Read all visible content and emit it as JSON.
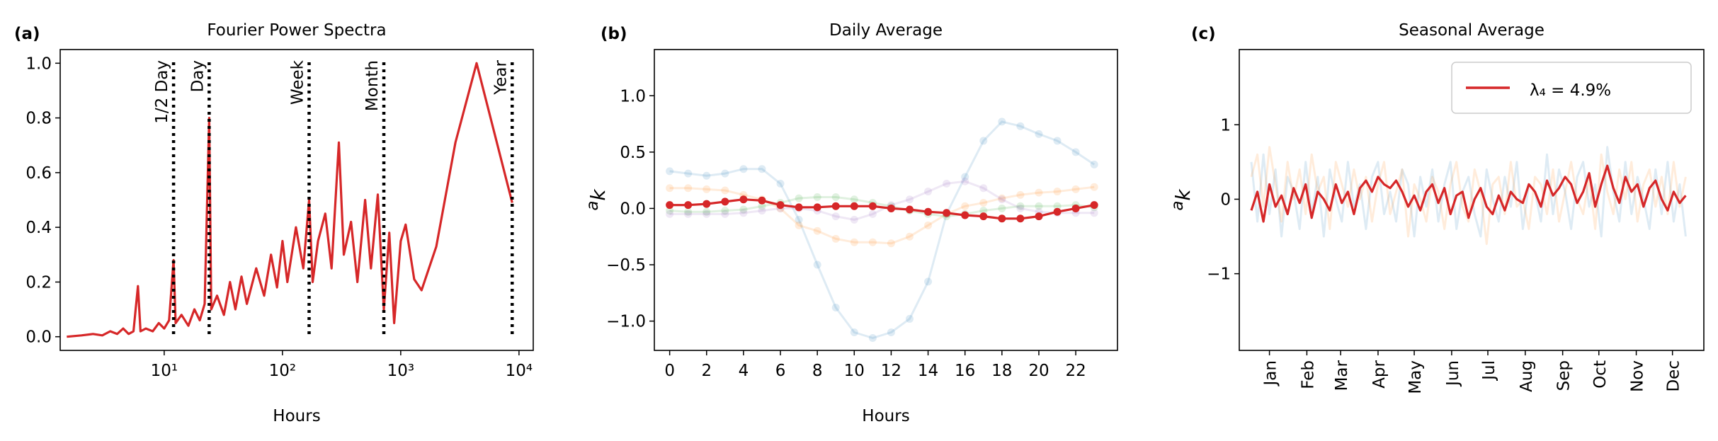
{
  "chart_data": [
    {
      "type": "line",
      "label": "(a)",
      "title": "Fourier Power Spectra",
      "xlabel": "Hours",
      "xscale": "log",
      "xlim": [
        1.32,
        13200
      ],
      "ylim": [
        -0.05,
        1.05
      ],
      "xticks": [
        {
          "value": 10,
          "label": "10¹"
        },
        {
          "value": 100,
          "label": "10²"
        },
        {
          "value": 1000,
          "label": "10³"
        },
        {
          "value": 10000,
          "label": "10⁴"
        }
      ],
      "yticks": [
        {
          "value": 0,
          "label": "0.0"
        },
        {
          "value": 0.2,
          "label": "0.2"
        },
        {
          "value": 0.4,
          "label": "0.4"
        },
        {
          "value": 0.6,
          "label": "0.6"
        },
        {
          "value": 0.8,
          "label": "0.8"
        },
        {
          "value": 1,
          "label": "1.0"
        }
      ],
      "vlines": [
        {
          "value": 12,
          "label": "1/2 Day"
        },
        {
          "value": 24,
          "label": "Day"
        },
        {
          "value": 168,
          "label": "Week"
        },
        {
          "value": 720,
          "label": "Month"
        },
        {
          "value": 8760,
          "label": "Year"
        }
      ],
      "x": [
        1.5,
        2,
        2.5,
        3,
        3.5,
        4,
        4.5,
        5,
        5.5,
        6,
        6.3,
        7,
        8,
        9,
        10,
        11,
        12,
        12.5,
        14,
        16,
        18,
        20,
        22,
        24,
        25,
        28,
        32,
        36,
        40,
        45,
        50,
        60,
        70,
        80,
        90,
        100,
        110,
        130,
        150,
        168,
        180,
        200,
        230,
        260,
        300,
        330,
        380,
        430,
        500,
        560,
        640,
        720,
        800,
        880,
        1000,
        1100,
        1300,
        1500,
        2000,
        2900,
        4380,
        8760
      ],
      "series": [
        {
          "color": "#d62728",
          "opacity": 1,
          "values": [
            0.0,
            0.005,
            0.01,
            0.005,
            0.02,
            0.01,
            0.03,
            0.01,
            0.02,
            0.185,
            0.02,
            0.03,
            0.02,
            0.05,
            0.03,
            0.06,
            0.28,
            0.05,
            0.08,
            0.04,
            0.1,
            0.06,
            0.12,
            0.8,
            0.1,
            0.15,
            0.08,
            0.2,
            0.1,
            0.22,
            0.12,
            0.25,
            0.15,
            0.3,
            0.18,
            0.35,
            0.2,
            0.4,
            0.25,
            0.5,
            0.2,
            0.35,
            0.45,
            0.25,
            0.71,
            0.3,
            0.42,
            0.2,
            0.5,
            0.25,
            0.52,
            0.1,
            0.38,
            0.05,
            0.35,
            0.41,
            0.21,
            0.17,
            0.33,
            0.71,
            1.0,
            0.49
          ]
        }
      ]
    },
    {
      "type": "line",
      "label": "(b)",
      "title": "Daily Average",
      "xlabel": "Hours",
      "ylabel_base": "a",
      "ylabel_sub": "k",
      "markers": true,
      "xlim": [
        -0.83,
        24.26
      ],
      "ylim": [
        -1.26,
        1.41
      ],
      "xticks": [
        0,
        2,
        4,
        6,
        8,
        10,
        12,
        14,
        16,
        18,
        20,
        22
      ],
      "yticks": [
        {
          "value": -1,
          "label": "−1.0"
        },
        {
          "value": -0.5,
          "label": "−0.5"
        },
        {
          "value": 0,
          "label": "0.0"
        },
        {
          "value": 0.5,
          "label": "0.5"
        },
        {
          "value": 1,
          "label": "1.0"
        }
      ],
      "x": [
        0,
        1,
        2,
        3,
        4,
        5,
        6,
        7,
        8,
        9,
        10,
        11,
        12,
        13,
        14,
        15,
        16,
        17,
        18,
        19,
        20,
        21,
        22,
        23
      ],
      "series": [
        {
          "color": "#1f77b4",
          "opacity": 0.15,
          "values": [
            0.33,
            0.31,
            0.29,
            0.31,
            0.35,
            0.35,
            0.22,
            -0.1,
            -0.5,
            -0.88,
            -1.1,
            -1.15,
            -1.1,
            -0.98,
            -0.65,
            -0.05,
            0.28,
            0.6,
            0.77,
            0.73,
            0.66,
            0.6,
            0.5,
            0.39
          ]
        },
        {
          "color": "#ff7f0e",
          "opacity": 0.15,
          "values": [
            0.18,
            0.18,
            0.17,
            0.16,
            0.12,
            0.08,
            0.0,
            -0.15,
            -0.2,
            -0.27,
            -0.3,
            -0.3,
            -0.31,
            -0.25,
            -0.15,
            -0.05,
            0.02,
            0.05,
            0.09,
            0.12,
            0.14,
            0.15,
            0.17,
            0.19
          ]
        },
        {
          "color": "#2ca02c",
          "opacity": 0.15,
          "values": [
            -0.02,
            -0.03,
            -0.03,
            -0.02,
            -0.01,
            0.02,
            0.05,
            0.09,
            0.1,
            0.1,
            0.08,
            0.05,
            0.02,
            -0.02,
            -0.05,
            -0.07,
            -0.05,
            -0.02,
            0.0,
            0.02,
            0.02,
            0.02,
            0.03,
            0.01
          ]
        },
        {
          "color": "#9467bd",
          "opacity": 0.15,
          "values": [
            -0.05,
            -0.05,
            -0.05,
            -0.05,
            -0.04,
            -0.02,
            0.0,
            0.0,
            -0.02,
            -0.07,
            -0.1,
            -0.05,
            0.03,
            0.08,
            0.15,
            0.22,
            0.24,
            0.18,
            0.08,
            0.0,
            -0.03,
            -0.04,
            -0.04,
            -0.04
          ]
        },
        {
          "color": "#d62728",
          "opacity": 1,
          "values": [
            0.03,
            0.03,
            0.04,
            0.06,
            0.08,
            0.07,
            0.03,
            0.01,
            0.01,
            0.02,
            0.02,
            0.02,
            0.0,
            -0.01,
            -0.03,
            -0.04,
            -0.06,
            -0.07,
            -0.09,
            -0.09,
            -0.07,
            -0.03,
            0.0,
            0.03
          ]
        }
      ]
    },
    {
      "type": "line",
      "label": "(c)",
      "title": "Seasonal Average",
      "ylabel_base": "a",
      "ylabel_sub": "k",
      "xtick_rotation": 90,
      "legend": "upper right",
      "xlim": [
        -10,
        375
      ],
      "ylim": [
        -2.03,
        2.01
      ],
      "xticks": [
        {
          "value": 15,
          "label": "Jan"
        },
        {
          "value": 46,
          "label": "Feb"
        },
        {
          "value": 74,
          "label": "Mar"
        },
        {
          "value": 105,
          "label": "Apr"
        },
        {
          "value": 135,
          "label": "May"
        },
        {
          "value": 166,
          "label": "Jun"
        },
        {
          "value": 196,
          "label": "Jul"
        },
        {
          "value": 227,
          "label": "Aug"
        },
        {
          "value": 258,
          "label": "Sep"
        },
        {
          "value": 288,
          "label": "Oct"
        },
        {
          "value": 319,
          "label": "Nov"
        },
        {
          "value": 349,
          "label": "Dec"
        }
      ],
      "yticks": [
        {
          "value": -1,
          "label": "−1"
        },
        0,
        1
      ],
      "x": [
        0,
        5,
        10,
        15,
        20,
        25,
        30,
        35,
        40,
        45,
        50,
        55,
        60,
        65,
        70,
        75,
        80,
        85,
        90,
        95,
        100,
        105,
        110,
        115,
        120,
        125,
        130,
        135,
        140,
        145,
        150,
        155,
        160,
        165,
        170,
        175,
        180,
        185,
        190,
        195,
        200,
        205,
        210,
        215,
        220,
        225,
        230,
        235,
        240,
        245,
        250,
        255,
        260,
        265,
        270,
        275,
        280,
        285,
        290,
        295,
        300,
        305,
        310,
        315,
        320,
        325,
        330,
        335,
        340,
        345,
        350,
        355,
        360
      ],
      "series": [
        {
          "color": "#1f77b4",
          "opacity": 0.15,
          "values": [
            0.5,
            -0.3,
            0.6,
            -0.2,
            0.4,
            -0.5,
            0.3,
            0.1,
            -0.4,
            0.5,
            -0.2,
            0.3,
            -0.5,
            0.4,
            0.0,
            -0.3,
            0.5,
            -0.1,
            0.2,
            -0.4,
            0.3,
            0.5,
            -0.2,
            0.1,
            -0.3,
            0.4,
            0.2,
            -0.5,
            0.3,
            -0.1,
            0.4,
            -0.3,
            0.2,
            0.5,
            -0.4,
            0.1,
            0.3,
            -0.2,
            -0.5,
            0.4,
            0.0,
            -0.3,
            0.3,
            -0.1,
            0.5,
            -0.4,
            0.2,
            0.1,
            -0.3,
            0.6,
            -0.2,
            0.4,
            0.1,
            -0.4,
            0.3,
            0.5,
            -0.1,
            0.2,
            -0.5,
            0.7,
            0.1,
            -0.3,
            0.5,
            -0.2,
            0.3,
            0.0,
            -0.4,
            0.4,
            -0.2,
            0.5,
            -0.3,
            0.2,
            -0.5
          ]
        },
        {
          "color": "#ff7f0e",
          "opacity": 0.15,
          "values": [
            0.3,
            0.6,
            -0.1,
            0.7,
            0.2,
            -0.3,
            0.5,
            0.0,
            0.4,
            -0.2,
            0.6,
            0.1,
            0.3,
            -0.4,
            0.5,
            0.2,
            -0.1,
            0.4,
            0.0,
            0.3,
            -0.3,
            0.2,
            0.5,
            -0.2,
            0.1,
            0.4,
            -0.5,
            0.2,
            0.0,
            -0.3,
            0.3,
            0.1,
            -0.4,
            0.2,
            0.5,
            -0.1,
            -0.3,
            0.4,
            0.1,
            -0.6,
            0.2,
            0.3,
            -0.2,
            0.5,
            -0.1,
            0.0,
            -0.4,
            0.3,
            0.2,
            -0.2,
            0.4,
            -0.3,
            0.1,
            0.5,
            0.0,
            -0.2,
            0.3,
            -0.4,
            0.6,
            0.1,
            -0.2,
            0.4,
            0.0,
            0.5,
            -0.3,
            0.2,
            0.4,
            -0.1,
            0.3,
            -0.2,
            0.5,
            -0.1,
            0.3
          ]
        },
        {
          "name": "λ₄ = 4.9%",
          "color": "#d62728",
          "opacity": 1,
          "values": [
            -0.15,
            0.1,
            -0.3,
            0.2,
            -0.1,
            0.05,
            -0.2,
            0.15,
            -0.05,
            0.2,
            -0.25,
            0.1,
            0.0,
            -0.15,
            0.2,
            -0.05,
            0.1,
            -0.2,
            0.15,
            0.25,
            0.1,
            0.3,
            0.2,
            0.15,
            0.25,
            0.1,
            -0.1,
            0.05,
            -0.15,
            0.1,
            0.2,
            -0.05,
            0.15,
            -0.2,
            0.05,
            0.1,
            -0.25,
            0.0,
            0.15,
            -0.1,
            -0.2,
            0.05,
            -0.15,
            0.1,
            0.0,
            -0.05,
            0.2,
            0.1,
            -0.1,
            0.25,
            0.05,
            0.15,
            0.3,
            0.2,
            -0.05,
            0.1,
            0.35,
            -0.1,
            0.2,
            0.45,
            0.15,
            -0.05,
            0.3,
            0.1,
            0.2,
            -0.1,
            0.15,
            0.25,
            0.0,
            -0.15,
            0.1,
            -0.05,
            0.05
          ]
        }
      ]
    }
  ]
}
